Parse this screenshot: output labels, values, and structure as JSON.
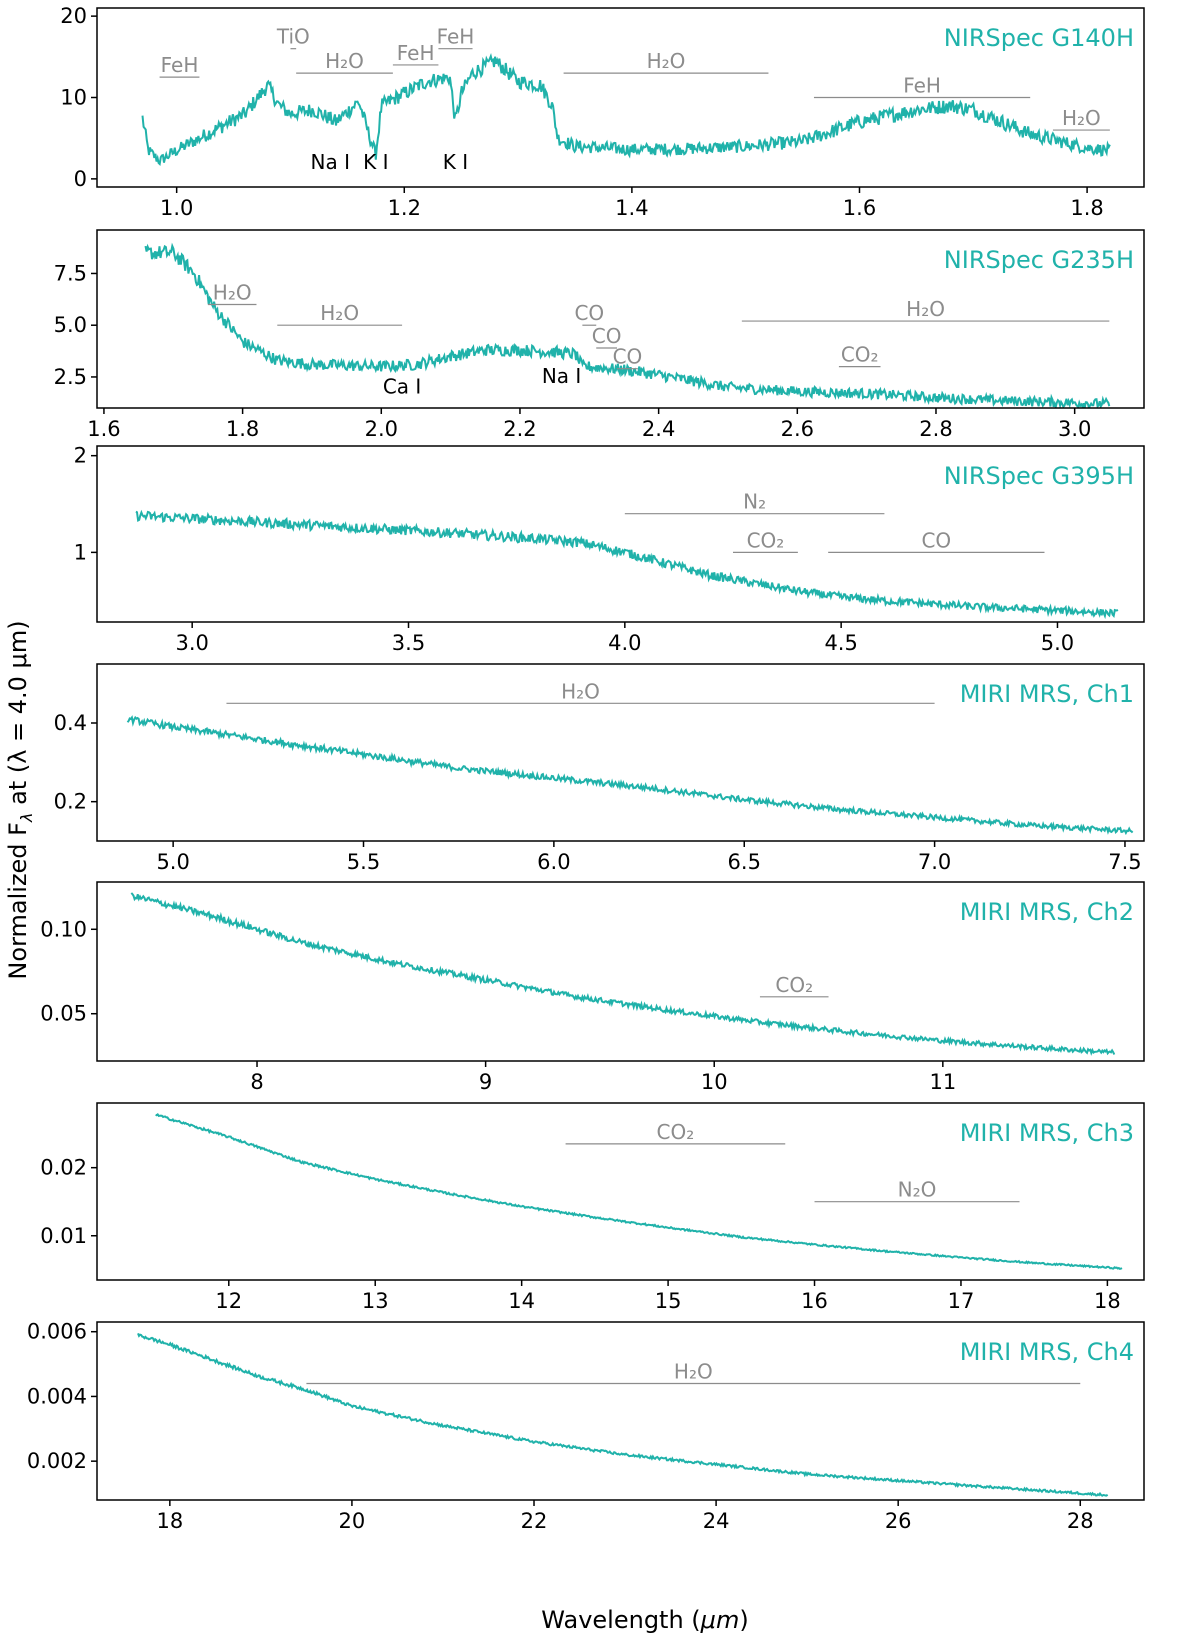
{
  "figure": {
    "ylabel_main": "Normalized F",
    "ylabel_sub": "λ",
    "ylabel_tail": " at (λ = 4.0 μm)",
    "xlabel_main": "Wavelength (",
    "xlabel_unit": "μm",
    "xlabel_close": ")",
    "line_color": "#20b2aa",
    "label_color": "#20b2aa",
    "feature_color": "#8c8c8c",
    "atomic_color": "#000000"
  },
  "chart_data": [
    {
      "type": "line",
      "title": "NIRSpec G140H",
      "xlim": [
        0.93,
        1.85
      ],
      "ylim": [
        -1,
        21
      ],
      "xticks": [
        1.0,
        1.2,
        1.4,
        1.6,
        1.8
      ],
      "xtick_labels": [
        "1.0",
        "1.2",
        "1.4",
        "1.6",
        "1.8"
      ],
      "yticks": [
        0,
        10,
        20
      ],
      "ytick_labels": [
        "0",
        "10",
        "20"
      ],
      "noise": 0.9,
      "series": [
        {
          "x": [
            0.97,
            0.975,
            0.985,
            1.0,
            1.02,
            1.04,
            1.06,
            1.08,
            1.09,
            1.1,
            1.12,
            1.14,
            1.16,
            1.17,
            1.175,
            1.18,
            1.2,
            1.22,
            1.24,
            1.245,
            1.25,
            1.26,
            1.28,
            1.3,
            1.32,
            1.33,
            1.335,
            1.35,
            1.4,
            1.45,
            1.5,
            1.55,
            1.6,
            1.65,
            1.68,
            1.7,
            1.75,
            1.8,
            1.82
          ],
          "y": [
            7.5,
            3.5,
            2.2,
            3.5,
            5.0,
            6.5,
            8.0,
            11.5,
            9.0,
            8.0,
            8.5,
            7.0,
            9.5,
            5.0,
            3.0,
            9.0,
            10.5,
            12.0,
            12.5,
            7.0,
            10.5,
            13.0,
            14.5,
            12.0,
            11.5,
            9.0,
            5.0,
            4.0,
            3.6,
            3.7,
            4.0,
            4.6,
            7.0,
            8.5,
            9.0,
            8.5,
            5.5,
            3.8,
            3.5
          ]
        }
      ],
      "features": [
        {
          "label": "FeH",
          "x1": 0.985,
          "x2": 1.02,
          "y": 12.5
        },
        {
          "label": "TiO",
          "x1": 1.1,
          "x2": 1.105,
          "y": 16.0
        },
        {
          "label": "H₂O",
          "x1": 1.105,
          "x2": 1.19,
          "y": 13.0
        },
        {
          "label": "FeH",
          "x1": 1.19,
          "x2": 1.23,
          "y": 14.0
        },
        {
          "label": "FeH",
          "x1": 1.23,
          "x2": 1.26,
          "y": 16.0
        },
        {
          "label": "H₂O",
          "x1": 1.34,
          "x2": 1.52,
          "y": 13.0
        },
        {
          "label": "FeH",
          "x1": 1.56,
          "x2": 1.75,
          "y": 10.0
        },
        {
          "label": "H₂O",
          "x1": 1.77,
          "x2": 1.82,
          "y": 6.0
        }
      ],
      "atomic": [
        {
          "label": "Na I",
          "x": 1.135,
          "y": 1.2
        },
        {
          "label": "K I",
          "x": 1.175,
          "y": 1.2
        },
        {
          "label": "K I",
          "x": 1.245,
          "y": 1.2
        }
      ]
    },
    {
      "type": "line",
      "title": "NIRSpec G235H",
      "xlim": [
        1.59,
        3.1
      ],
      "ylim": [
        1.0,
        9.6
      ],
      "xticks": [
        1.6,
        1.8,
        2.0,
        2.2,
        2.4,
        2.6,
        2.8,
        3.0
      ],
      "xtick_labels": [
        "1.6",
        "1.8",
        "2.0",
        "2.2",
        "2.4",
        "2.6",
        "2.8",
        "3.0"
      ],
      "yticks": [
        2.5,
        5.0,
        7.5
      ],
      "ytick_labels": [
        "2.5",
        "5.0",
        "7.5"
      ],
      "noise": 0.35,
      "series": [
        {
          "x": [
            1.66,
            1.7,
            1.73,
            1.76,
            1.8,
            1.85,
            1.9,
            2.0,
            2.05,
            2.1,
            2.15,
            2.2,
            2.25,
            2.28,
            2.29,
            2.3,
            2.35,
            2.4,
            2.5,
            2.6,
            2.7,
            2.8,
            2.9,
            3.05
          ],
          "y": [
            8.5,
            8.5,
            7.5,
            5.8,
            4.2,
            3.3,
            3.1,
            3.0,
            3.1,
            3.5,
            3.8,
            3.8,
            3.7,
            3.6,
            3.0,
            3.0,
            2.85,
            2.6,
            2.0,
            1.8,
            1.7,
            1.5,
            1.35,
            1.2
          ]
        }
      ],
      "features": [
        {
          "label": "H₂O",
          "x1": 1.75,
          "x2": 1.82,
          "y": 6.0
        },
        {
          "label": "H₂O",
          "x1": 1.85,
          "x2": 2.03,
          "y": 5.0
        },
        {
          "label": "CO",
          "x1": 2.29,
          "x2": 2.31,
          "y": 5.0
        },
        {
          "label": "CO",
          "x1": 2.31,
          "x2": 2.34,
          "y": 3.9
        },
        {
          "label": "CO",
          "x1": 2.34,
          "x2": 2.37,
          "y": 2.9
        },
        {
          "label": "H₂O",
          "x1": 2.52,
          "x2": 3.05,
          "y": 5.2
        },
        {
          "label": "CO₂",
          "x1": 2.66,
          "x2": 2.72,
          "y": 3.0
        }
      ],
      "atomic": [
        {
          "label": "Ca I",
          "x": 2.03,
          "y": 1.7
        },
        {
          "label": "Na I",
          "x": 2.26,
          "y": 2.2
        }
      ]
    },
    {
      "type": "line",
      "title": "NIRSpec G395H",
      "xlim": [
        2.78,
        5.2
      ],
      "ylim": [
        0.28,
        2.1
      ],
      "xticks": [
        3.0,
        3.5,
        4.0,
        4.5,
        5.0
      ],
      "xtick_labels": [
        "3.0",
        "3.5",
        "4.0",
        "4.5",
        "5.0"
      ],
      "yticks": [
        1,
        2
      ],
      "ytick_labels": [
        "1",
        "2"
      ],
      "noise": 0.05,
      "series": [
        {
          "x": [
            2.87,
            3.0,
            3.2,
            3.4,
            3.6,
            3.8,
            3.9,
            4.0,
            4.1,
            4.2,
            4.3,
            4.4,
            4.5,
            4.6,
            4.7,
            4.8,
            4.9,
            5.0,
            5.14
          ],
          "y": [
            1.38,
            1.35,
            1.3,
            1.25,
            1.2,
            1.14,
            1.1,
            1.0,
            0.88,
            0.76,
            0.68,
            0.6,
            0.54,
            0.5,
            0.47,
            0.44,
            0.42,
            0.4,
            0.37
          ]
        }
      ],
      "features": [
        {
          "label": "N₂",
          "x1": 4.0,
          "x2": 4.6,
          "y": 1.4
        },
        {
          "label": "CO₂",
          "x1": 4.25,
          "x2": 4.4,
          "y": 1.0
        },
        {
          "label": "CO",
          "x1": 4.47,
          "x2": 4.97,
          "y": 1.0
        }
      ],
      "atomic": []
    },
    {
      "type": "line",
      "title": "MIRI MRS, Ch1",
      "xlim": [
        4.8,
        7.55
      ],
      "ylim": [
        0.1,
        0.55
      ],
      "xticks": [
        5.0,
        5.5,
        6.0,
        6.5,
        7.0,
        7.5
      ],
      "xtick_labels": [
        "5.0",
        "5.5",
        "6.0",
        "6.5",
        "7.0",
        "7.5"
      ],
      "yticks": [
        0.2,
        0.4
      ],
      "ytick_labels": [
        "0.2",
        "0.4"
      ],
      "noise": 0.008,
      "series": [
        {
          "x": [
            4.88,
            5.0,
            5.25,
            5.5,
            5.75,
            6.0,
            6.25,
            6.5,
            6.75,
            7.0,
            7.25,
            7.52
          ],
          "y": [
            0.41,
            0.39,
            0.355,
            0.32,
            0.285,
            0.26,
            0.235,
            0.205,
            0.18,
            0.16,
            0.14,
            0.125
          ]
        }
      ],
      "features": [
        {
          "label": "H₂O",
          "x1": 5.14,
          "x2": 7.0,
          "y": 0.45
        }
      ],
      "atomic": []
    },
    {
      "type": "line",
      "title": "MIRI MRS, Ch2",
      "xlim": [
        7.3,
        11.88
      ],
      "ylim": [
        0.022,
        0.128
      ],
      "xticks": [
        8,
        9,
        10,
        11
      ],
      "xtick_labels": [
        "8",
        "9",
        "10",
        "11"
      ],
      "yticks": [
        0.05,
        0.1
      ],
      "ytick_labels": [
        "0.05",
        "0.10"
      ],
      "noise": 0.0018,
      "series": [
        {
          "x": [
            7.45,
            7.8,
            8.2,
            8.6,
            9.0,
            9.4,
            9.8,
            10.2,
            10.6,
            11.0,
            11.4,
            11.75
          ],
          "y": [
            0.12,
            0.108,
            0.092,
            0.08,
            0.07,
            0.06,
            0.052,
            0.045,
            0.039,
            0.034,
            0.03,
            0.027
          ]
        }
      ],
      "features": [
        {
          "label": "CO₂",
          "x1": 10.2,
          "x2": 10.5,
          "y": 0.06
        }
      ],
      "atomic": []
    },
    {
      "type": "line",
      "title": "MIRI MRS, Ch3",
      "xlim": [
        11.1,
        18.25
      ],
      "ylim": [
        0.0035,
        0.0295
      ],
      "xticks": [
        12,
        13,
        14,
        15,
        16,
        17,
        18
      ],
      "xtick_labels": [
        "12",
        "13",
        "14",
        "15",
        "16",
        "17",
        "18"
      ],
      "yticks": [
        0.01,
        0.02
      ],
      "ytick_labels": [
        "0.01",
        "0.02"
      ],
      "noise": 0.00016,
      "series": [
        {
          "x": [
            11.5,
            12.0,
            12.5,
            13.0,
            13.5,
            14.0,
            14.5,
            15.0,
            15.5,
            16.0,
            16.5,
            17.0,
            17.5,
            18.1
          ],
          "y": [
            0.0278,
            0.0245,
            0.0208,
            0.0183,
            0.0162,
            0.0143,
            0.0127,
            0.0112,
            0.0098,
            0.0087,
            0.0077,
            0.0068,
            0.006,
            0.0052
          ]
        }
      ],
      "features": [
        {
          "label": "CO₂",
          "x1": 14.3,
          "x2": 15.8,
          "y": 0.0235
        },
        {
          "label": "N₂O",
          "x1": 16.0,
          "x2": 17.4,
          "y": 0.015
        }
      ],
      "atomic": []
    },
    {
      "type": "line",
      "title": "MIRI MRS, Ch4",
      "xlim": [
        17.2,
        28.7
      ],
      "ylim": [
        0.0008,
        0.0063
      ],
      "xticks": [
        18,
        20,
        22,
        24,
        26,
        28
      ],
      "xtick_labels": [
        "18",
        "20",
        "22",
        "24",
        "26",
        "28"
      ],
      "yticks": [
        0.002,
        0.004,
        0.006
      ],
      "ytick_labels": [
        "0.002",
        "0.004",
        "0.006"
      ],
      "noise": 5e-05,
      "series": [
        {
          "x": [
            17.65,
            18.0,
            18.5,
            19.0,
            19.5,
            20.0,
            21.0,
            22.0,
            23.0,
            24.0,
            25.0,
            26.0,
            27.0,
            28.3
          ],
          "y": [
            0.0059,
            0.0056,
            0.0051,
            0.0046,
            0.0042,
            0.0037,
            0.0031,
            0.0026,
            0.0022,
            0.0019,
            0.0016,
            0.0014,
            0.0012,
            0.00095
          ]
        }
      ],
      "features": [
        {
          "label": "H₂O",
          "x1": 19.5,
          "x2": 28.0,
          "y": 0.0044
        }
      ],
      "atomic": []
    }
  ]
}
